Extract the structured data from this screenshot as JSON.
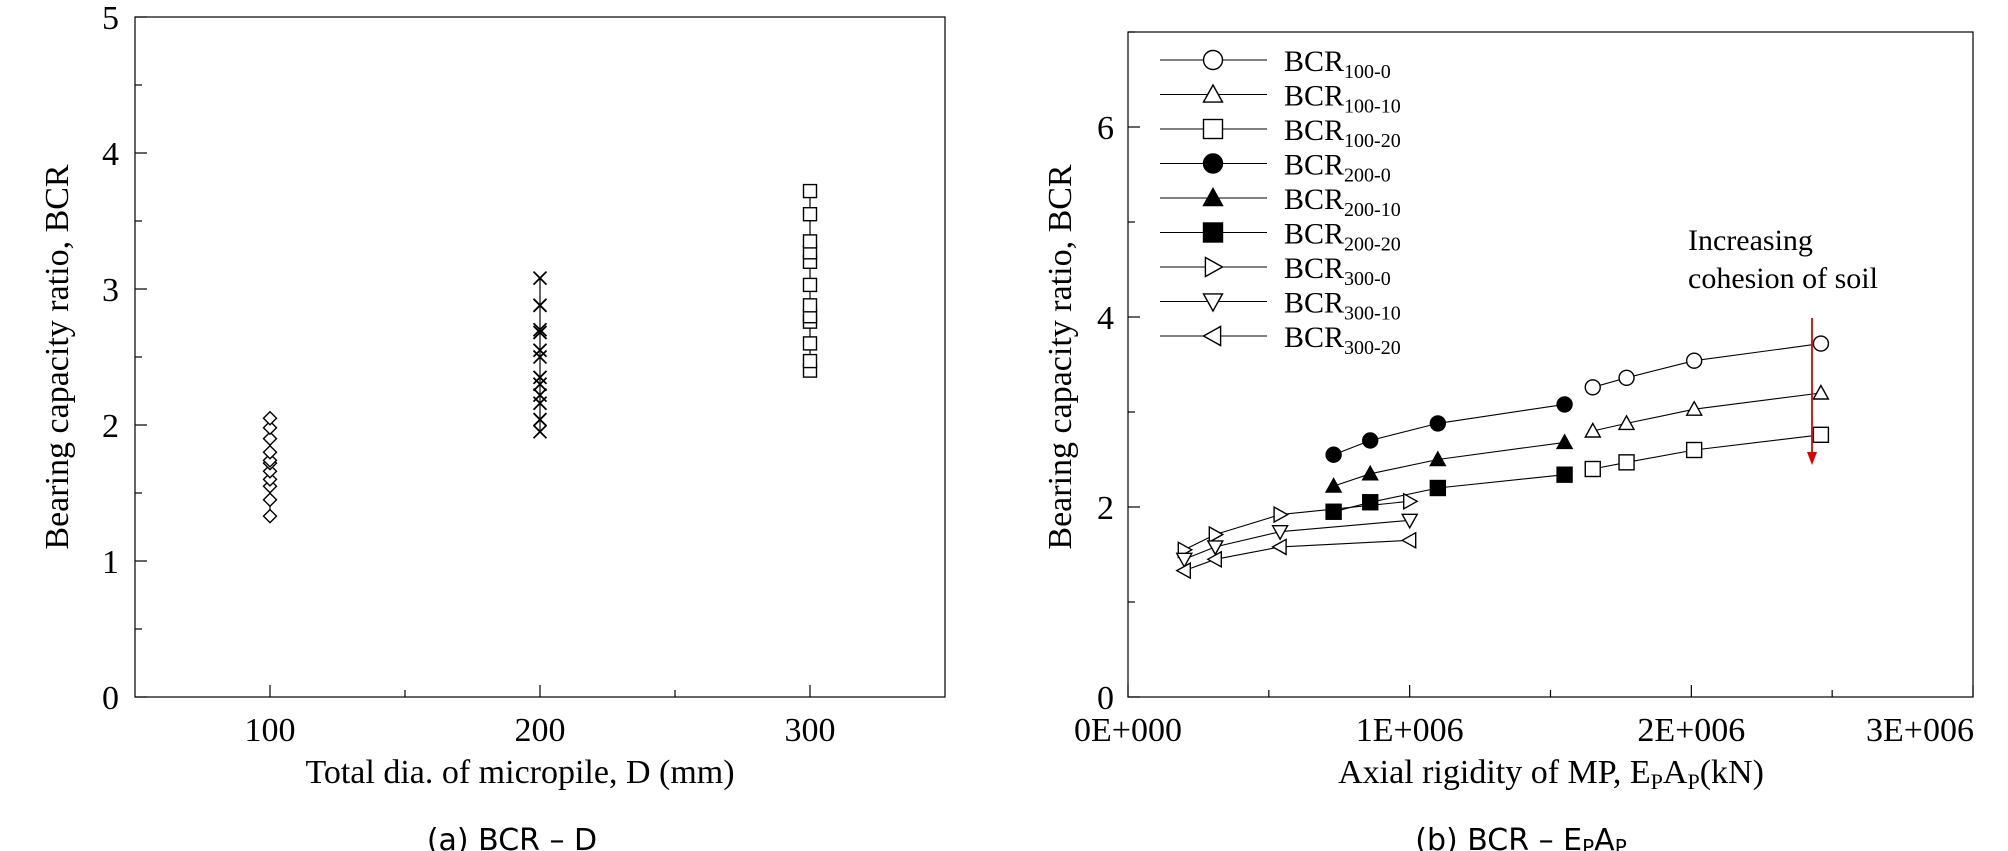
{
  "chart_data": [
    {
      "type": "scatter",
      "caption": "(a) BCR – D",
      "xlabel": "Total dia. of micropile, D (mm)",
      "ylabel": "Bearing capacity ratio, BCR",
      "xlim": [
        50,
        350
      ],
      "ylim": [
        0,
        5
      ],
      "xticks": [
        "100",
        "200",
        "300"
      ],
      "yticks": [
        "0",
        "1",
        "2",
        "3",
        "4",
        "5"
      ],
      "grid": false,
      "series": [
        {
          "marker": "diamond-open",
          "x": 100,
          "values": [
            1.33,
            1.45,
            1.55,
            1.6,
            1.66,
            1.72,
            1.74,
            1.8,
            1.9,
            1.98,
            2.05
          ]
        },
        {
          "marker": "x",
          "x": 200,
          "values": [
            1.95,
            2.04,
            2.16,
            2.22,
            2.3,
            2.35,
            2.5,
            2.55,
            2.68,
            2.7,
            2.88,
            3.08
          ]
        },
        {
          "marker": "square-open",
          "x": 300,
          "values": [
            2.4,
            2.47,
            2.6,
            2.76,
            2.8,
            2.88,
            3.03,
            3.2,
            3.27,
            3.35,
            3.55,
            3.72
          ]
        }
      ]
    },
    {
      "type": "line",
      "caption_prefix": "(b) BCR – E",
      "caption_sub1": "P",
      "caption_mid": "A",
      "caption_sub2": "P",
      "xlabel_prefix": "Axial rigidity of MP, E",
      "xlabel_sub1": "P",
      "xlabel_mid": "A",
      "xlabel_sub2": "P",
      "xlabel_suffix": "(kN)",
      "ylabel": "Bearing capacity ratio, BCR",
      "xlim": [
        0,
        3000000
      ],
      "ylim": [
        0,
        7
      ],
      "xticks": [
        "0E+000",
        "1E+006",
        "2E+006",
        "3E+006"
      ],
      "yticks": [
        "0",
        "2",
        "4",
        "6"
      ],
      "grid": false,
      "legend_position": "top-left",
      "annotation": [
        "Increasing",
        "cohesion of soil"
      ],
      "arrow_color": "#e00000",
      "series": [
        {
          "base": "BCR",
          "sub": "100-0",
          "marker": "circle-open",
          "x": [
            1650000,
            1770000,
            2010000,
            2460000
          ],
          "y": [
            3.26,
            3.36,
            3.54,
            3.72
          ]
        },
        {
          "base": "BCR",
          "sub": "100-10",
          "marker": "triangle-up-open",
          "x": [
            1650000,
            1770000,
            2010000,
            2460000
          ],
          "y": [
            2.8,
            2.88,
            3.03,
            3.2
          ]
        },
        {
          "base": "BCR",
          "sub": "100-20",
          "marker": "square-open",
          "x": [
            1650000,
            1770000,
            2010000,
            2460000
          ],
          "y": [
            2.4,
            2.47,
            2.6,
            2.76
          ]
        },
        {
          "base": "BCR",
          "sub": "200-0",
          "marker": "circle-filled",
          "x": [
            730000,
            860000,
            1100000,
            1550000
          ],
          "y": [
            2.55,
            2.7,
            2.88,
            3.08
          ]
        },
        {
          "base": "BCR",
          "sub": "200-10",
          "marker": "triangle-up-filled",
          "x": [
            730000,
            860000,
            1100000,
            1550000
          ],
          "y": [
            2.22,
            2.35,
            2.5,
            2.68
          ]
        },
        {
          "base": "BCR",
          "sub": "200-20",
          "marker": "square-filled",
          "x": [
            730000,
            860000,
            1100000,
            1550000
          ],
          "y": [
            1.95,
            2.05,
            2.2,
            2.34
          ]
        },
        {
          "base": "BCR",
          "sub": "300-0",
          "marker": "triangle-right-open",
          "x": [
            200000,
            310000,
            540000,
            1000000
          ],
          "y": [
            1.55,
            1.71,
            1.92,
            2.06
          ]
        },
        {
          "base": "BCR",
          "sub": "300-10",
          "marker": "triangle-down-open",
          "x": [
            200000,
            310000,
            540000,
            1000000
          ],
          "y": [
            1.45,
            1.58,
            1.74,
            1.86
          ]
        },
        {
          "base": "BCR",
          "sub": "300-20",
          "marker": "triangle-left-open",
          "x": [
            200000,
            310000,
            540000,
            1000000
          ],
          "y": [
            1.33,
            1.45,
            1.58,
            1.65
          ]
        }
      ]
    }
  ]
}
